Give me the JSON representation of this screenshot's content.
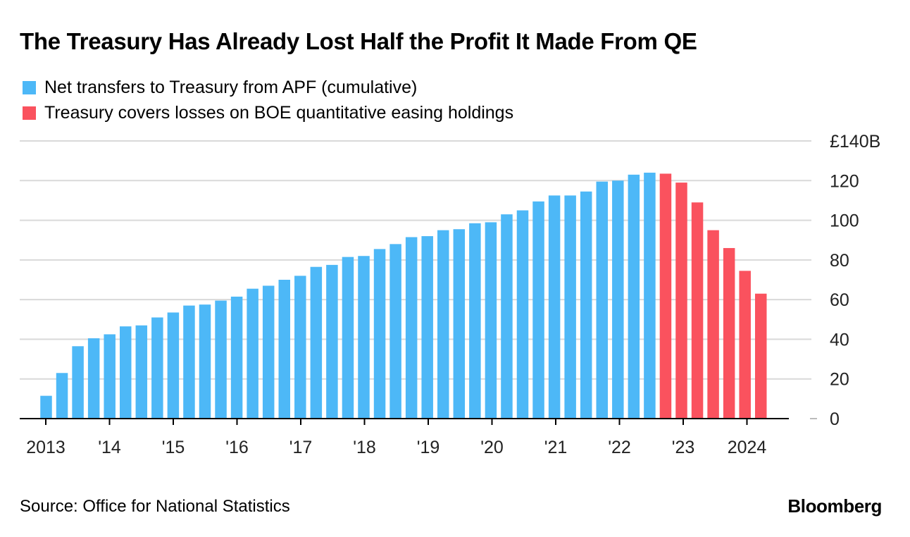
{
  "header": {
    "title": "The Treasury Has Already Lost Half the Profit It Made From QE"
  },
  "legend": [
    {
      "label": "Net transfers to Treasury from APF (cumulative)",
      "color": "#4db8f7"
    },
    {
      "label": "Treasury covers losses on BOE quantitative easing holdings",
      "color": "#fa525e"
    }
  ],
  "footer": {
    "source": "Source: Office for National Statistics",
    "brand": "Bloomberg"
  },
  "chart_data": {
    "type": "bar",
    "title": "The Treasury Has Already Lost Half the Profit It Made From QE",
    "xlabel": "",
    "ylabel": "",
    "ylim": [
      0,
      140
    ],
    "y_ticks": [
      "0",
      "20",
      "40",
      "60",
      "80",
      "100",
      "120",
      "£140B"
    ],
    "y_axis_position": "right",
    "grid": true,
    "x_tick_labels": [
      "2013",
      "'14",
      "'15",
      "'16",
      "'17",
      "'18",
      "'19",
      "'20",
      "'21",
      "'22",
      "'23",
      "2024"
    ],
    "series": [
      {
        "name": "Net transfers to Treasury from APF (cumulative)",
        "color": "#4db8f7",
        "values": [
          11.5,
          23,
          36.5,
          40.5,
          42.5,
          46.5,
          47,
          51,
          53.5,
          57,
          57.5,
          59.5,
          61.5,
          65.5,
          67,
          70,
          72,
          76.5,
          77.5,
          81.5,
          82,
          85.5,
          88,
          91.5,
          92,
          95,
          95.5,
          98.5,
          99,
          103,
          105,
          109.5,
          112.5,
          112.5,
          114.5,
          119.5,
          120,
          123,
          124
        ]
      },
      {
        "name": "Treasury covers losses on BOE quantitative easing holdings",
        "color": "#fa525e",
        "values": [
          123.5,
          119,
          109,
          95,
          86,
          74.5,
          63
        ]
      }
    ]
  }
}
